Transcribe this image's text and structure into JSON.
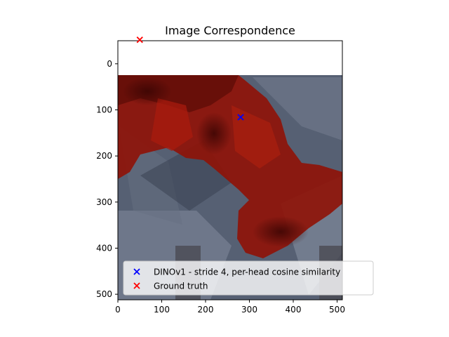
{
  "chart_data": {
    "type": "scatter",
    "title": "Image Correspondence",
    "xlabel": "",
    "ylabel": "",
    "xlim": [
      0,
      512
    ],
    "ylim": [
      512,
      -50
    ],
    "y_inverted": true,
    "grid": false,
    "background_image": "robot-arm-correspondence-heatmap",
    "x_ticks": [
      0,
      100,
      200,
      300,
      400,
      500
    ],
    "y_ticks": [
      0,
      100,
      200,
      300,
      400,
      500
    ],
    "legend_placement": "lower-right",
    "series": [
      {
        "name": "DINOv1 - stride 4, per-head cosine similarity",
        "color": "#0000ff",
        "marker": "x",
        "points": [
          {
            "x": 280,
            "y": 116
          }
        ]
      },
      {
        "name": "Ground truth",
        "color": "#ff0000",
        "marker": "x",
        "points": [
          {
            "x": 50,
            "y": -52
          }
        ]
      }
    ]
  }
}
